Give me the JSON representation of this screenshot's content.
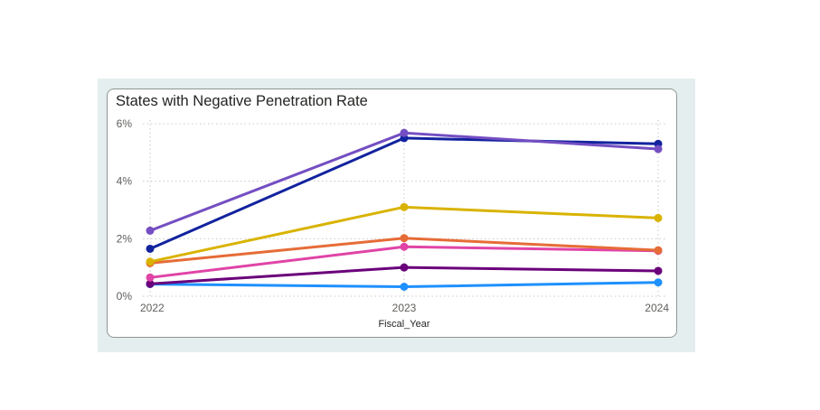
{
  "chart_data": {
    "type": "line",
    "title": "States with Negative Penetration Rate",
    "xlabel": "Fiscal_Year",
    "ylabel": "",
    "x": [
      "2022",
      "2023",
      "2024"
    ],
    "ylim": [
      0,
      6
    ],
    "y_ticks": [
      "0%",
      "2%",
      "4%",
      "6%"
    ],
    "grid": true,
    "legend": "none",
    "series": [
      {
        "color": "#1e90ff",
        "values": [
          0.42,
          0.33,
          0.48
        ]
      },
      {
        "color": "#6b007b",
        "values": [
          0.43,
          1.0,
          0.88
        ]
      },
      {
        "color": "#e044a7",
        "values": [
          0.65,
          1.72,
          1.58
        ]
      },
      {
        "color": "#e66c37",
        "values": [
          1.15,
          2.02,
          1.6
        ]
      },
      {
        "color": "#d9b300",
        "values": [
          1.2,
          3.1,
          2.72
        ]
      },
      {
        "color": "#12239e",
        "values": [
          1.65,
          5.5,
          5.3
        ]
      },
      {
        "color": "#744ec2",
        "values": [
          2.28,
          5.68,
          5.12
        ]
      }
    ]
  }
}
